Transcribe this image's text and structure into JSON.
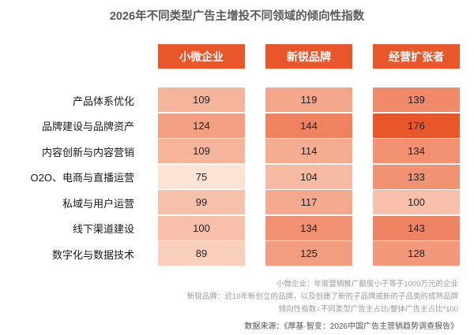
{
  "chart_data": {
    "type": "table",
    "title": "2026年不同类型广告主增投不同领域的倾向性指数",
    "columns": [
      "小微企业",
      "新锐品牌",
      "经营扩张者"
    ],
    "rows": [
      "产品体系优化",
      "品牌建设与品牌资产",
      "内容创新与内容营销",
      "O2O、电商与直播运营",
      "私域与用户运营",
      "线下渠道建设",
      "数字化与数据技术"
    ],
    "values": [
      [
        109,
        119,
        139
      ],
      [
        124,
        144,
        176
      ],
      [
        109,
        114,
        134
      ],
      [
        75,
        104,
        133
      ],
      [
        99,
        117,
        100
      ],
      [
        100,
        134,
        143
      ],
      [
        89,
        125,
        128
      ]
    ],
    "color_scale": {
      "low": "#fde3d4",
      "high": "#e8562a"
    }
  },
  "notes": [
    "小微企业：年度营销推广额度小于等于1000万元的企业",
    "新锐品牌：近10年新创立的品牌，以及创建了新的子品牌或新的子品类的成熟品牌",
    "倾向性指数=不同类型广告主占比/整体广告主占比*100"
  ],
  "source": "数据来源：《厚基·智变：2026中国广告主营销趋势调查报告》"
}
